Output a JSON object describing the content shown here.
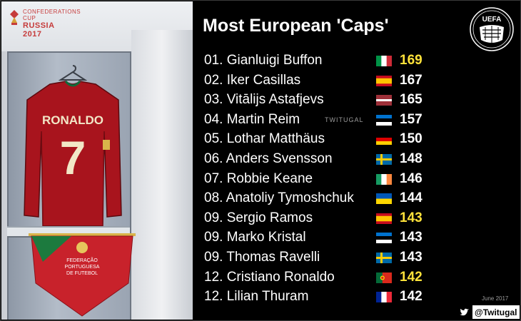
{
  "title": "Most European 'Caps'",
  "logo_text": "UEFA",
  "watermark": "TWITUGAL",
  "date": "June 2017",
  "twitter_handle": "@Twitugal",
  "photo": {
    "cup_line1": "CONFEDERATIONS CUP",
    "cup_line2": "RUSSIA",
    "cup_line3": "2017",
    "shirt_name": "RONALDO",
    "shirt_number": "7",
    "pennant_lines": [
      "FEDERAÇÃO",
      "PORTUGUESA",
      "DE FUTEBOL"
    ]
  },
  "highlight_color": "#ffe23a",
  "rows": [
    {
      "rank": "01.",
      "player": "Gianluigi Buffon",
      "flag": "italy",
      "caps": "169",
      "highlight": true
    },
    {
      "rank": "02.",
      "player": "Iker Casillas",
      "flag": "spain",
      "caps": "167",
      "highlight": false
    },
    {
      "rank": "03.",
      "player": "Vitālijs Astafjevs",
      "flag": "latvia",
      "caps": "165",
      "highlight": false
    },
    {
      "rank": "04.",
      "player": "Martin Reim",
      "flag": "estonia",
      "caps": "157",
      "highlight": false
    },
    {
      "rank": "05.",
      "player": "Lothar Matthäus",
      "flag": "germany",
      "caps": "150",
      "highlight": false
    },
    {
      "rank": "06.",
      "player": "Anders Svensson",
      "flag": "sweden",
      "caps": "148",
      "highlight": false
    },
    {
      "rank": "07.",
      "player": "Robbie Keane",
      "flag": "ireland",
      "caps": "146",
      "highlight": false
    },
    {
      "rank": "08.",
      "player": "Anatoliy Tymoshchuk",
      "flag": "ukraine",
      "caps": "144",
      "highlight": false
    },
    {
      "rank": "09.",
      "player": "Sergio Ramos",
      "flag": "spain",
      "caps": "143",
      "highlight": true
    },
    {
      "rank": "09.",
      "player": "Marko Kristal",
      "flag": "estonia",
      "caps": "143",
      "highlight": false
    },
    {
      "rank": "09.",
      "player": "Thomas Ravelli",
      "flag": "sweden",
      "caps": "143",
      "highlight": false
    },
    {
      "rank": "12.",
      "player": "Cristiano Ronaldo",
      "flag": "portugal",
      "caps": "142",
      "highlight": true
    },
    {
      "rank": "12.",
      "player": "Lilian Thuram",
      "flag": "france",
      "caps": "142",
      "highlight": false
    }
  ]
}
